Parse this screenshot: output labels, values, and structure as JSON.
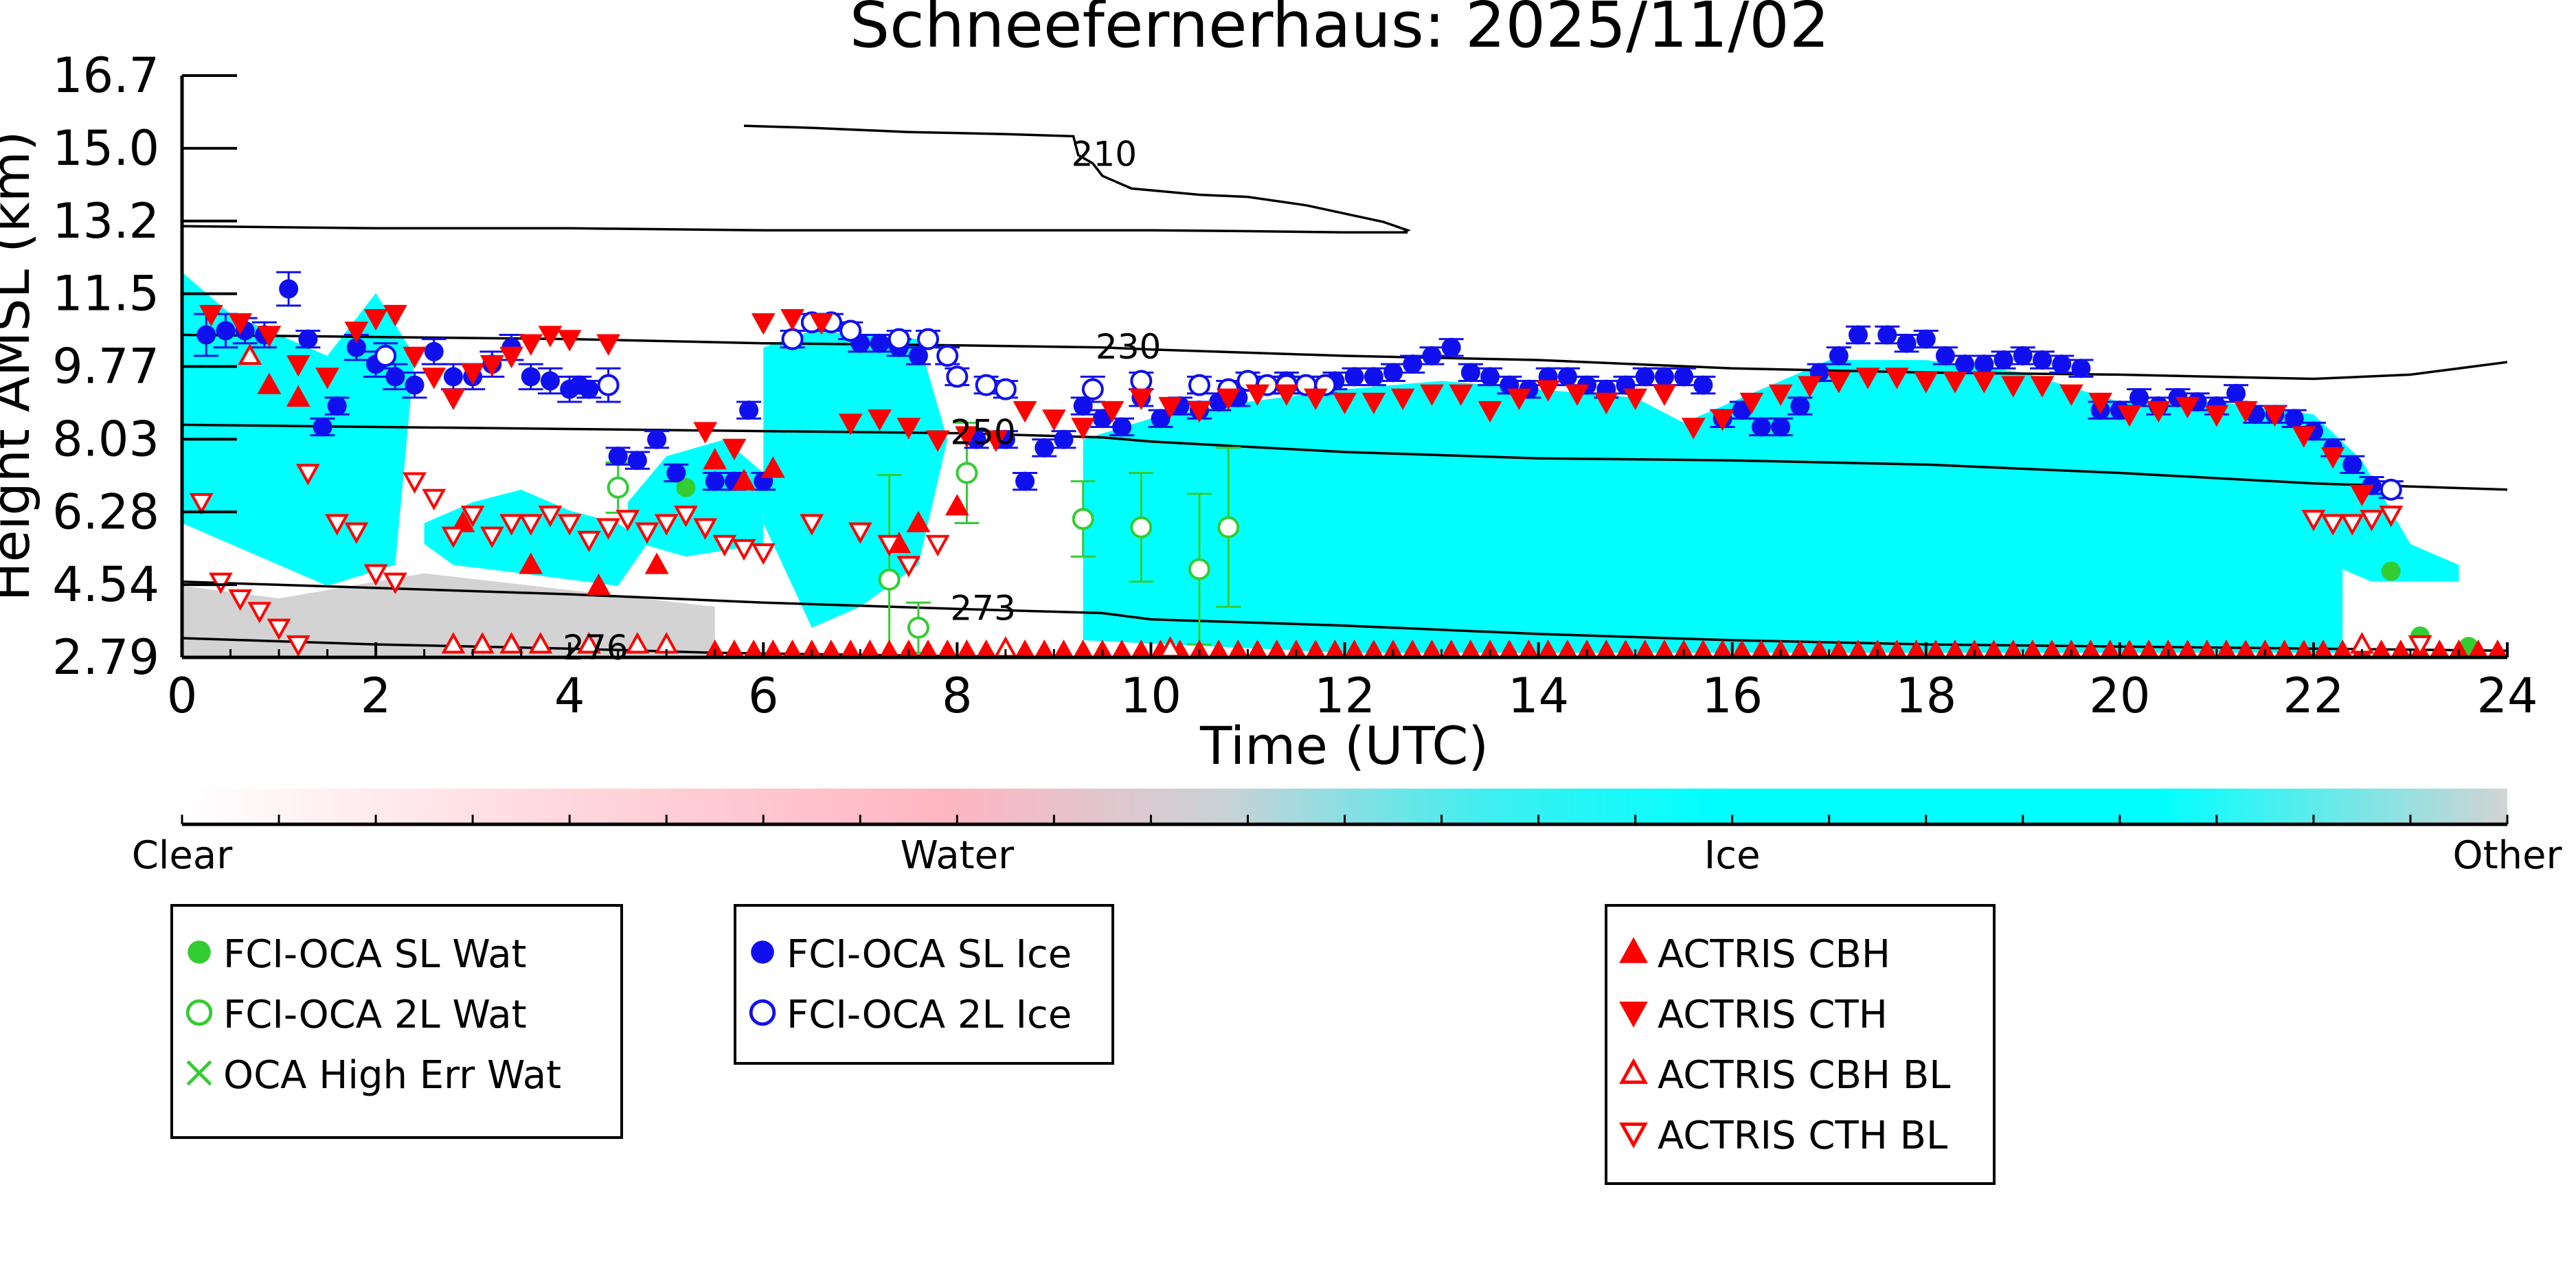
{
  "colors": {
    "ice": "#00ffff",
    "water_grad": "#ffb6c1",
    "other": "#d3d3d3",
    "fci_water": "#33cc33",
    "fci_ice": "#1010ee",
    "actris": "#ff0000"
  },
  "chart_data": {
    "type": "scatter",
    "title": "Schneefernerhaus: 2025/11/02",
    "xlabel": "Time (UTC)",
    "ylabel": "Height AMSL (km)",
    "xlim": [
      0,
      24
    ],
    "ylim": [
      2.79,
      16.7
    ],
    "x_ticks": [
      "0",
      "2",
      "4",
      "6",
      "8",
      "10",
      "12",
      "14",
      "16",
      "18",
      "20",
      "22",
      "24"
    ],
    "y_ticks": [
      "2.79",
      "4.54",
      "6.28",
      "8.03",
      "9.77",
      "11.5",
      "13.2",
      "15.0",
      "16.7"
    ],
    "grid": false,
    "contours": [
      {
        "label": "210",
        "x": [
          5.8,
          6.5,
          7.5,
          8.5,
          9.2,
          9.25,
          9.4,
          9.5,
          9.8,
          10.5,
          11.0,
          11.6,
          12.0,
          12.4,
          12.65,
          12.6
        ],
        "y": [
          15.5,
          15.45,
          15.35,
          15.3,
          15.25,
          14.8,
          14.6,
          14.3,
          14.0,
          13.85,
          13.8,
          13.6,
          13.4,
          13.2,
          13.0,
          12.95
        ]
      },
      {
        "label": "",
        "x": [
          0,
          2,
          4,
          6,
          8,
          10,
          11,
          12,
          12.65
        ],
        "y": [
          13.1,
          13.05,
          13.05,
          13.0,
          13.0,
          13.0,
          12.98,
          12.95,
          12.95
        ]
      },
      {
        "label": "230",
        "x": [
          0,
          2,
          4,
          6,
          8,
          9.5,
          10,
          12,
          14,
          16,
          18,
          20,
          22,
          23,
          24
        ],
        "y": [
          10.5,
          10.45,
          10.4,
          10.3,
          10.25,
          10.2,
          10.15,
          10.0,
          9.9,
          9.7,
          9.6,
          9.55,
          9.45,
          9.55,
          9.85
        ]
      },
      {
        "label": "250",
        "x": [
          0,
          2,
          4,
          6,
          8,
          9.5,
          10,
          12,
          14,
          16,
          18,
          20,
          22,
          24
        ],
        "y": [
          8.35,
          8.3,
          8.25,
          8.2,
          8.15,
          8.05,
          7.95,
          7.7,
          7.55,
          7.5,
          7.4,
          7.2,
          6.95,
          6.8
        ]
      },
      {
        "label": "273",
        "x": [
          0,
          2,
          4,
          6,
          8,
          9.5,
          10,
          12,
          14,
          16,
          18,
          20,
          22,
          24
        ],
        "y": [
          4.6,
          4.45,
          4.3,
          4.1,
          3.95,
          3.85,
          3.7,
          3.55,
          3.35,
          3.2,
          3.1,
          3.05,
          3.0,
          2.95
        ]
      },
      {
        "label": "276",
        "x": [
          0,
          2,
          4,
          5.5,
          7,
          8,
          9
        ],
        "y": [
          3.25,
          3.1,
          3.0,
          2.9,
          2.85,
          2.82,
          2.8
        ]
      }
    ],
    "classification": {
      "legend_labels": [
        "Clear",
        "Water",
        "Ice",
        "Other"
      ],
      "ice_regions": [
        {
          "x": [
            6.0,
            6.5,
            7.0,
            7.6,
            7.9,
            7.6,
            7.0,
            6.5,
            6.0
          ],
          "y": [
            10.2,
            10.6,
            10.5,
            10.4,
            8.0,
            5.0,
            4.0,
            3.5,
            6.0
          ]
        },
        {
          "x": [
            9.3,
            10,
            11,
            12,
            13,
            14,
            15,
            15.5,
            16,
            17,
            18,
            19,
            20,
            21,
            22,
            22.5,
            23,
            23.5,
            23.5,
            22.6,
            22.3,
            22.3,
            12,
            9.3
          ],
          "y": [
            8.0,
            8.5,
            8.9,
            9.2,
            9.4,
            9.2,
            9.0,
            8.4,
            8.9,
            9.9,
            9.9,
            9.6,
            8.9,
            8.9,
            8.6,
            7.5,
            5.5,
            5.0,
            4.6,
            4.6,
            4.9,
            2.9,
            2.9,
            3.2
          ]
        },
        {
          "x": [
            0.0,
            0.5,
            1.0,
            1.5,
            2.0,
            2.4,
            2.2,
            1.5,
            0.8,
            0.0
          ],
          "y": [
            12.0,
            11.0,
            10.5,
            10.0,
            11.5,
            10.0,
            5.0,
            4.5,
            5.2,
            6.0
          ]
        },
        {
          "x": [
            2.5,
            3.0,
            3.5,
            4.0,
            4.5,
            4.8,
            4.5,
            3.5,
            2.8,
            2.5
          ],
          "y": [
            6.0,
            6.5,
            6.8,
            6.3,
            6.0,
            5.5,
            4.5,
            4.8,
            5.0,
            5.5
          ]
        },
        {
          "x": [
            4.6,
            5.0,
            5.6,
            6.0,
            6.0,
            5.2,
            4.6
          ],
          "y": [
            6.5,
            7.6,
            8.0,
            7.2,
            5.5,
            5.2,
            5.6
          ]
        }
      ],
      "other_regions": [
        {
          "x": [
            0.0,
            1.0,
            2.5,
            4.0,
            5.5,
            5.5,
            0.0
          ],
          "y": [
            4.5,
            4.2,
            4.8,
            4.4,
            4.0,
            2.79,
            2.79
          ]
        }
      ]
    },
    "series": [
      {
        "name": "FCI-OCA SL Wat",
        "marker": "filled-circle",
        "color": "#33cc33",
        "x": [
          5.2,
          22.8,
          23.1,
          23.6
        ],
        "y": [
          6.85,
          4.85,
          3.3,
          3.05
        ]
      },
      {
        "name": "FCI-OCA 2L Wat",
        "marker": "open-circle",
        "color": "#33cc33",
        "x": [
          4.5,
          7.3,
          7.6,
          8.1,
          9.3,
          9.9,
          10.5,
          10.8
        ],
        "y": [
          6.85,
          4.65,
          3.5,
          7.2,
          6.1,
          5.9,
          4.9,
          5.9
        ],
        "yerr": [
          0.6,
          2.5,
          0.6,
          1.2,
          0.9,
          1.3,
          1.8,
          1.9
        ]
      },
      {
        "name": "OCA High Err Wat",
        "marker": "x",
        "color": "#33cc33",
        "x": [],
        "y": []
      },
      {
        "name": "FCI-OCA SL Ice",
        "marker": "filled-circle",
        "color": "#1010ee",
        "x": [
          0.25,
          0.45,
          0.65,
          0.85,
          1.1,
          1.3,
          1.45,
          1.6,
          1.8,
          2.0,
          2.2,
          2.4,
          2.6,
          2.8,
          3.0,
          3.2,
          3.4,
          3.6,
          3.8,
          4.0,
          4.1,
          4.2,
          4.5,
          4.7,
          4.9,
          5.1,
          5.5,
          5.7,
          5.85,
          6.0,
          7.0,
          7.2,
          7.4,
          7.6,
          8.2,
          8.5,
          8.7,
          8.9,
          9.1,
          9.3,
          9.5,
          9.7,
          9.9,
          10.1,
          10.3,
          10.5,
          10.7,
          10.9,
          11.2,
          11.4,
          11.6,
          11.9,
          12.1,
          12.3,
          12.5,
          12.7,
          12.9,
          13.1,
          13.3,
          13.5,
          13.7,
          13.9,
          14.1,
          14.3,
          14.5,
          14.7,
          14.9,
          15.1,
          15.3,
          15.5,
          15.7,
          15.9,
          16.1,
          16.3,
          16.5,
          16.7,
          16.9,
          17.1,
          17.3,
          17.6,
          17.8,
          18.0,
          18.2,
          18.4,
          18.6,
          18.8,
          19.0,
          19.2,
          19.4,
          19.6,
          19.8,
          20.0,
          20.2,
          20.4,
          20.6,
          20.8,
          21.0,
          21.2,
          21.4,
          21.6,
          21.8,
          22.0,
          22.2,
          22.4,
          22.6
        ],
        "y": [
          10.5,
          10.6,
          10.6,
          10.5,
          11.6,
          10.4,
          8.3,
          8.8,
          10.2,
          9.8,
          9.5,
          9.3,
          10.1,
          9.5,
          9.5,
          9.8,
          10.2,
          9.5,
          9.4,
          9.2,
          9.3,
          9.2,
          7.6,
          7.5,
          8.0,
          7.2,
          7.0,
          7.0,
          8.7,
          7.0,
          10.3,
          10.3,
          10.2,
          10.0,
          8.0,
          8.0,
          7.0,
          7.8,
          8.0,
          8.8,
          8.5,
          8.3,
          9.0,
          8.5,
          8.8,
          8.7,
          8.9,
          9.0,
          9.3,
          9.4,
          9.3,
          9.4,
          9.5,
          9.5,
          9.6,
          9.8,
          10.0,
          10.2,
          9.6,
          9.5,
          9.3,
          9.2,
          9.5,
          9.5,
          9.3,
          9.2,
          9.3,
          9.5,
          9.5,
          9.5,
          9.3,
          8.5,
          8.7,
          8.3,
          8.3,
          8.8,
          9.6,
          10.0,
          10.5,
          10.5,
          10.3,
          10.4,
          10.0,
          9.8,
          9.8,
          9.9,
          10.0,
          9.9,
          9.8,
          9.7,
          8.7,
          8.7,
          9.0,
          8.8,
          9.0,
          8.9,
          8.8,
          9.1,
          8.6,
          8.6,
          8.5,
          8.2,
          7.8,
          7.4,
          6.9
        ],
        "yerr": [
          0.5,
          0.4,
          0.3,
          0.3,
          0.4,
          0.2,
          0.2,
          0.2,
          0.3,
          0.3,
          0.3,
          0.3,
          0.3,
          0.3,
          0.3,
          0.3,
          0.3,
          0.3,
          0.3,
          0.3,
          0.2,
          0.2,
          0.2,
          0.2,
          0.2,
          0.2,
          0.2,
          0.2,
          0.2,
          0.2,
          0.2,
          0.2,
          0.2,
          0.2,
          0.2,
          0.2,
          0.2,
          0.2,
          0.2,
          0.2,
          0.2,
          0.2,
          0.2,
          0.2,
          0.2,
          0.2,
          0.2,
          0.2,
          0.2,
          0.2,
          0.2,
          0.2,
          0.2,
          0.2,
          0.2,
          0.2,
          0.2,
          0.2,
          0.2,
          0.2,
          0.2,
          0.2,
          0.2,
          0.2,
          0.2,
          0.2,
          0.2,
          0.2,
          0.2,
          0.2,
          0.2,
          0.2,
          0.2,
          0.2,
          0.2,
          0.2,
          0.2,
          0.2,
          0.2,
          0.2,
          0.2,
          0.2,
          0.2,
          0.2,
          0.2,
          0.2,
          0.2,
          0.2,
          0.2,
          0.2,
          0.2,
          0.2,
          0.2,
          0.2,
          0.2,
          0.2,
          0.2,
          0.2,
          0.2,
          0.2,
          0.2,
          0.2,
          0.2,
          0.2,
          0.2
        ]
      },
      {
        "name": "FCI-OCA 2L Ice",
        "marker": "open-circle",
        "color": "#1010ee",
        "x": [
          2.1,
          4.4,
          6.3,
          6.5,
          6.7,
          6.9,
          7.4,
          7.7,
          7.9,
          8.0,
          8.3,
          8.5,
          9.4,
          9.9,
          10.5,
          10.8,
          11.0,
          11.2,
          11.4,
          11.6,
          11.8,
          22.8
        ],
        "y": [
          10.0,
          9.3,
          10.4,
          10.8,
          10.8,
          10.6,
          10.4,
          10.4,
          10.0,
          9.5,
          9.3,
          9.2,
          9.2,
          9.4,
          9.3,
          9.2,
          9.4,
          9.3,
          9.3,
          9.3,
          9.3,
          6.8
        ],
        "yerr": [
          0.3,
          0.4,
          0.2,
          0.2,
          0.2,
          0.2,
          0.2,
          0.2,
          0.2,
          0.2,
          0.2,
          0.2,
          0.3,
          0.2,
          0.2,
          0.2,
          0.2,
          0.2,
          0.2,
          0.2,
          0.2,
          0.2
        ]
      },
      {
        "name": "ACTRIS CBH",
        "marker": "triangle-up-filled",
        "color": "#ff0000",
        "x": [
          0.9,
          1.2,
          2.9,
          3.6,
          4.3,
          4.9,
          5.5,
          5.8,
          6.1,
          7.4,
          7.6,
          8.0
        ],
        "y": [
          9.3,
          9.0,
          6.0,
          5.0,
          4.5,
          5.0,
          7.5,
          7.0,
          7.3,
          5.5,
          6.0,
          6.4
        ],
        "baseline": {
          "x_start": 5.5,
          "x_end": 24,
          "y": 2.95
        }
      },
      {
        "name": "ACTRIS CTH",
        "marker": "triangle-down-filled",
        "color": "#ff0000",
        "x": [
          0.3,
          0.6,
          0.9,
          1.2,
          1.5,
          1.8,
          2.0,
          2.2,
          2.4,
          2.6,
          2.8,
          3.0,
          3.2,
          3.4,
          3.6,
          3.8,
          4.0,
          4.4,
          5.4,
          5.7,
          6.0,
          6.3,
          6.6,
          6.9,
          7.2,
          7.5,
          7.8,
          8.1,
          8.4,
          8.7,
          9.0,
          9.3,
          9.6,
          9.9,
          10.2,
          10.5,
          10.8,
          11.1,
          11.4,
          11.7,
          12.0,
          12.3,
          12.6,
          12.9,
          13.2,
          13.5,
          13.8,
          14.1,
          14.4,
          14.7,
          15.0,
          15.3,
          15.6,
          15.9,
          16.2,
          16.5,
          16.8,
          17.1,
          17.4,
          17.7,
          18.0,
          18.3,
          18.6,
          18.9,
          19.2,
          19.5,
          19.8,
          20.1,
          20.4,
          20.7,
          21.0,
          21.3,
          21.6,
          21.9,
          22.2,
          22.5
        ],
        "y": [
          11.0,
          10.8,
          10.5,
          9.8,
          9.5,
          10.6,
          10.9,
          11.0,
          10.0,
          9.5,
          9.0,
          9.6,
          9.8,
          10.0,
          10.3,
          10.5,
          10.4,
          10.3,
          8.2,
          7.8,
          10.8,
          10.9,
          10.8,
          8.4,
          8.5,
          8.3,
          8.0,
          8.1,
          8.0,
          8.7,
          8.5,
          8.3,
          8.7,
          9.0,
          8.8,
          8.7,
          9.0,
          9.1,
          9.1,
          9.0,
          8.9,
          8.9,
          9.0,
          9.1,
          9.1,
          8.7,
          9.0,
          9.2,
          9.1,
          8.9,
          9.0,
          9.1,
          8.3,
          8.5,
          8.9,
          9.1,
          9.3,
          9.4,
          9.5,
          9.5,
          9.4,
          9.4,
          9.4,
          9.3,
          9.3,
          9.1,
          8.9,
          8.6,
          8.7,
          8.8,
          8.6,
          8.7,
          8.6,
          8.1,
          7.6,
          6.7
        ]
      },
      {
        "name": "ACTRIS CBH BL",
        "marker": "triangle-up-open",
        "color": "#ff0000",
        "x": [
          0.7,
          2.8,
          3.1,
          3.4,
          3.7,
          4.2,
          4.7,
          5.0,
          8.5,
          10.2,
          22.5
        ],
        "y": [
          10.0,
          3.1,
          3.1,
          3.1,
          3.1,
          3.1,
          3.1,
          3.1,
          3.0,
          3.0,
          3.1
        ]
      },
      {
        "name": "ACTRIS CTH BL",
        "marker": "triangle-down-open",
        "color": "#ff0000",
        "x": [
          0.2,
          0.4,
          0.6,
          0.8,
          1.0,
          1.2,
          1.3,
          1.6,
          1.8,
          2.0,
          2.2,
          2.4,
          2.6,
          2.8,
          3.0,
          3.2,
          3.4,
          3.6,
          3.8,
          4.0,
          4.2,
          4.4,
          4.6,
          4.8,
          5.0,
          5.2,
          5.4,
          5.6,
          5.8,
          6.0,
          6.5,
          7.0,
          7.3,
          7.5,
          7.8,
          22.0,
          22.2,
          22.4,
          22.6,
          22.8,
          23.1
        ],
        "y": [
          6.5,
          4.6,
          4.2,
          3.9,
          3.5,
          3.1,
          7.2,
          6.0,
          5.8,
          4.8,
          4.6,
          7.0,
          6.6,
          5.7,
          6.2,
          5.7,
          6.0,
          6.0,
          6.2,
          6.0,
          5.6,
          5.9,
          6.1,
          5.8,
          6.0,
          6.2,
          5.9,
          5.5,
          5.4,
          5.3,
          6.0,
          5.8,
          5.5,
          5.0,
          5.5,
          6.1,
          6.0,
          6.0,
          6.1,
          6.2,
          3.1
        ]
      }
    ]
  },
  "legend_boxes": [
    {
      "entries": [
        {
          "label": "FCI-OCA SL Wat",
          "marker": "filled-circle",
          "color": "#33cc33"
        },
        {
          "label": "FCI-OCA 2L Wat",
          "marker": "open-circle",
          "color": "#33cc33"
        },
        {
          "label": "OCA High Err Wat",
          "marker": "x",
          "color": "#33cc33"
        }
      ]
    },
    {
      "entries": [
        {
          "label": "FCI-OCA SL Ice",
          "marker": "filled-circle",
          "color": "#1010ee"
        },
        {
          "label": "FCI-OCA 2L Ice",
          "marker": "open-circle",
          "color": "#1010ee"
        }
      ]
    },
    {
      "entries": [
        {
          "label": "ACTRIS CBH",
          "marker": "triangle-up-filled",
          "color": "#ff0000"
        },
        {
          "label": "ACTRIS CTH",
          "marker": "triangle-down-filled",
          "color": "#ff0000"
        },
        {
          "label": "ACTRIS CBH BL",
          "marker": "triangle-up-open",
          "color": "#ff0000"
        },
        {
          "label": "ACTRIS CTH BL",
          "marker": "triangle-down-open",
          "color": "#ff0000"
        }
      ]
    }
  ]
}
